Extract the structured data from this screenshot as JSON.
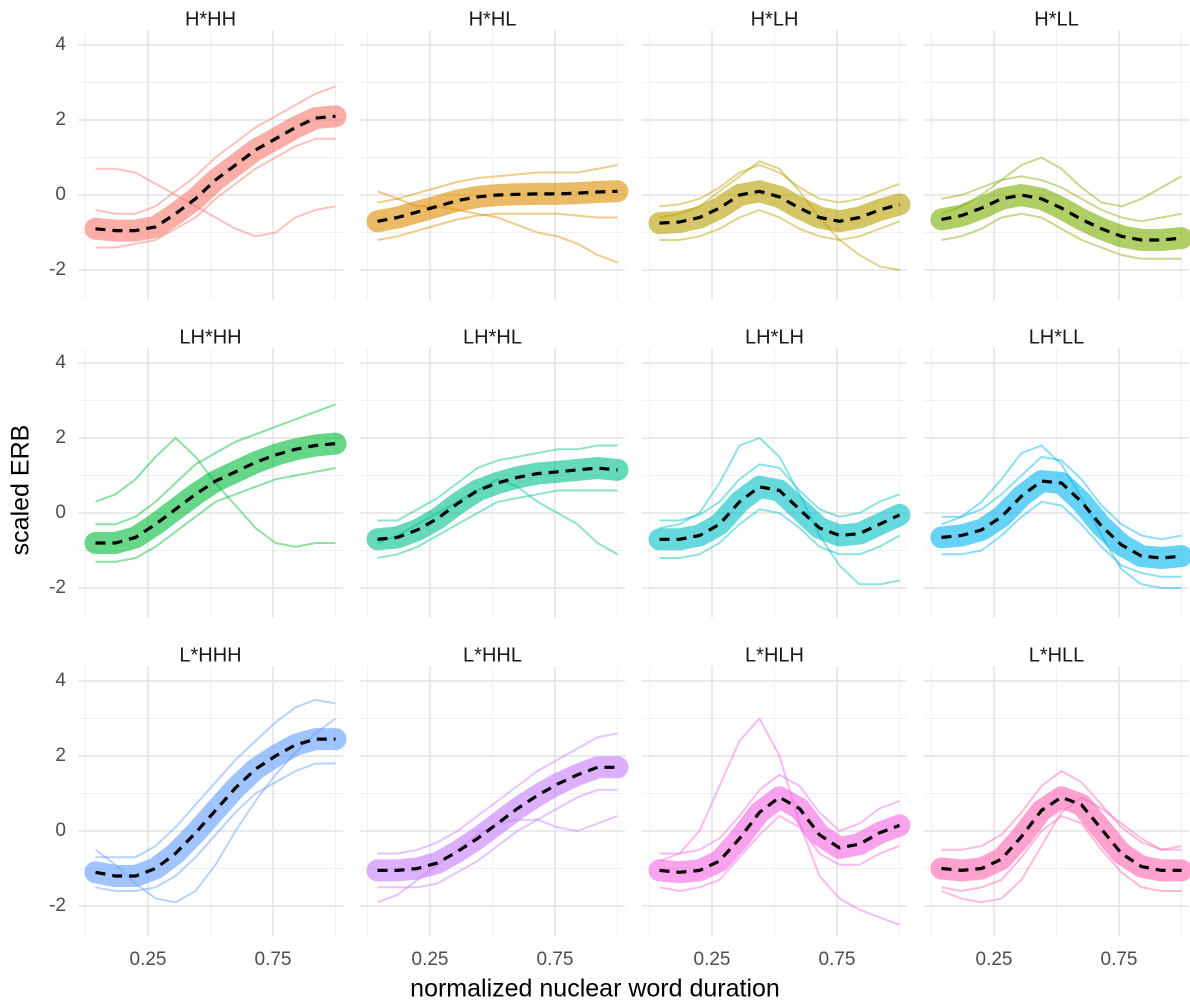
{
  "chart_data": {
    "type": "line",
    "ylabel": "scaled ERB",
    "xlabel": "normalized nuclear word duration",
    "x": [
      0.04,
      0.12,
      0.2,
      0.28,
      0.36,
      0.44,
      0.52,
      0.6,
      0.68,
      0.76,
      0.84,
      0.92,
      1.0
    ],
    "xlim": [
      -0.03,
      1.03
    ],
    "xticks": [
      0.25,
      0.75
    ],
    "x_minor": [
      0,
      0.5,
      1
    ],
    "ylim": [
      -2.8,
      4.4
    ],
    "yticks": [
      -2,
      0,
      2,
      4
    ],
    "y_minor": [
      -1,
      1,
      3
    ],
    "grid": true,
    "mean_color": "#000000",
    "panels": [
      {
        "title": "H*HH",
        "color": "#F8766D",
        "mean": [
          -0.9,
          -0.95,
          -0.95,
          -0.85,
          -0.5,
          -0.1,
          0.4,
          0.8,
          1.2,
          1.5,
          1.8,
          2.05,
          2.1
        ],
        "traces": [
          [
            -0.4,
            -0.5,
            -0.5,
            -0.3,
            0.1,
            0.5,
            1.0,
            1.4,
            1.8,
            2.1,
            2.4,
            2.7,
            2.9
          ],
          [
            -1.4,
            -1.4,
            -1.3,
            -1.2,
            -0.9,
            -0.6,
            -0.1,
            0.3,
            0.7,
            1.0,
            1.3,
            1.5,
            1.5
          ],
          [
            0.7,
            0.7,
            0.6,
            0.3,
            0.0,
            -0.3,
            -0.6,
            -0.9,
            -1.1,
            -1.0,
            -0.6,
            -0.4,
            -0.3
          ]
        ]
      },
      {
        "title": "H*HL",
        "color": "#DE8C00",
        "mean": [
          -0.7,
          -0.6,
          -0.45,
          -0.3,
          -0.15,
          -0.05,
          0,
          0.02,
          0.03,
          0.03,
          0.05,
          0.08,
          0.1
        ],
        "traces": [
          [
            -0.2,
            -0.1,
            0.05,
            0.2,
            0.35,
            0.45,
            0.5,
            0.55,
            0.6,
            0.6,
            0.6,
            0.7,
            0.8
          ],
          [
            -1.2,
            -1.1,
            -0.95,
            -0.8,
            -0.65,
            -0.55,
            -0.5,
            -0.5,
            -0.5,
            -0.5,
            -0.55,
            -0.6,
            -0.6
          ],
          [
            0.1,
            -0.1,
            -0.3,
            -0.3,
            -0.4,
            -0.5,
            -0.6,
            -0.8,
            -1.0,
            -1.1,
            -1.3,
            -1.6,
            -1.8
          ]
        ]
      },
      {
        "title": "H*LH",
        "color": "#B79F00",
        "mean": [
          -0.75,
          -0.72,
          -0.6,
          -0.35,
          0.0,
          0.1,
          -0.05,
          -0.35,
          -0.6,
          -0.7,
          -0.6,
          -0.4,
          -0.25
        ],
        "traces": [
          [
            -0.3,
            -0.25,
            -0.1,
            0.2,
            0.6,
            0.8,
            0.6,
            0.2,
            -0.1,
            -0.2,
            -0.1,
            0.1,
            0.3
          ],
          [
            -1.2,
            -1.2,
            -1.1,
            -0.9,
            -0.6,
            -0.4,
            -0.6,
            -0.9,
            -1.1,
            -1.2,
            -1.1,
            -0.9,
            -0.7
          ],
          [
            -0.6,
            -0.5,
            -0.3,
            0.1,
            0.5,
            0.9,
            0.7,
            0.1,
            -0.6,
            -1.2,
            -1.6,
            -1.9,
            -2.0
          ]
        ]
      },
      {
        "title": "H*LL",
        "color": "#7CAE00",
        "mean": [
          -0.65,
          -0.55,
          -0.35,
          -0.1,
          0,
          -0.1,
          -0.35,
          -0.65,
          -0.9,
          -1.1,
          -1.2,
          -1.2,
          -1.15
        ],
        "traces": [
          [
            -0.1,
            0.0,
            0.2,
            0.4,
            0.5,
            0.4,
            0.2,
            -0.1,
            -0.4,
            -0.6,
            -0.7,
            -0.6,
            -0.5
          ],
          [
            -1.2,
            -1.1,
            -0.9,
            -0.6,
            -0.5,
            -0.6,
            -0.9,
            -1.2,
            -1.4,
            -1.6,
            -1.7,
            -1.7,
            -1.7
          ],
          [
            -0.5,
            -0.3,
            0.0,
            0.4,
            0.8,
            1.0,
            0.7,
            0.2,
            -0.2,
            -0.3,
            -0.1,
            0.2,
            0.5
          ]
        ]
      },
      {
        "title": "LH*HH",
        "color": "#00BA38",
        "mean": [
          -0.8,
          -0.8,
          -0.65,
          -0.3,
          0.1,
          0.5,
          0.85,
          1.1,
          1.35,
          1.55,
          1.7,
          1.8,
          1.85
        ],
        "traces": [
          [
            -0.3,
            -0.3,
            -0.1,
            0.3,
            0.8,
            1.3,
            1.6,
            1.9,
            2.1,
            2.3,
            2.5,
            2.7,
            2.9
          ],
          [
            -1.3,
            -1.3,
            -1.2,
            -0.9,
            -0.5,
            -0.1,
            0.3,
            0.5,
            0.7,
            0.9,
            1.0,
            1.1,
            1.2
          ],
          [
            0.3,
            0.5,
            0.9,
            1.5,
            2.0,
            1.5,
            0.8,
            0.2,
            -0.4,
            -0.8,
            -0.9,
            -0.8,
            -0.8
          ]
        ]
      },
      {
        "title": "LH*HL",
        "color": "#00C08B",
        "mean": [
          -0.7,
          -0.65,
          -0.45,
          -0.15,
          0.25,
          0.6,
          0.8,
          0.95,
          1.05,
          1.1,
          1.15,
          1.2,
          1.15
        ],
        "traces": [
          [
            -0.2,
            -0.2,
            0.1,
            0.4,
            0.8,
            1.2,
            1.4,
            1.5,
            1.6,
            1.7,
            1.7,
            1.8,
            1.8
          ],
          [
            -1.2,
            -1.1,
            -0.9,
            -0.6,
            -0.3,
            0.0,
            0.3,
            0.4,
            0.5,
            0.6,
            0.6,
            0.6,
            0.6
          ],
          [
            -0.8,
            -0.6,
            -0.3,
            0.0,
            0.3,
            0.6,
            0.9,
            0.7,
            0.3,
            0.0,
            -0.3,
            -0.8,
            -1.1
          ]
        ]
      },
      {
        "title": "LH*LH",
        "color": "#00BFC4",
        "mean": [
          -0.7,
          -0.7,
          -0.6,
          -0.3,
          0.3,
          0.7,
          0.6,
          0.1,
          -0.4,
          -0.6,
          -0.55,
          -0.3,
          -0.05
        ],
        "traces": [
          [
            -0.2,
            -0.2,
            -0.05,
            0.3,
            0.9,
            1.3,
            1.2,
            0.6,
            0.1,
            -0.1,
            0.0,
            0.3,
            0.5
          ],
          [
            -1.2,
            -1.2,
            -1.1,
            -0.8,
            -0.3,
            0.1,
            0.0,
            -0.4,
            -0.9,
            -1.1,
            -1.1,
            -0.9,
            -0.6
          ],
          [
            -0.4,
            -0.3,
            0.0,
            0.8,
            1.8,
            2.0,
            1.5,
            0.5,
            -0.6,
            -1.4,
            -1.9,
            -1.9,
            -1.8
          ]
        ]
      },
      {
        "title": "LH*LL",
        "color": "#00B4F0",
        "mean": [
          -0.65,
          -0.6,
          -0.45,
          -0.1,
          0.45,
          0.85,
          0.8,
          0.3,
          -0.35,
          -0.85,
          -1.15,
          -1.2,
          -1.15
        ],
        "traces": [
          [
            -0.1,
            -0.1,
            0.1,
            0.5,
            1.0,
            1.5,
            1.4,
            0.9,
            0.2,
            -0.3,
            -0.6,
            -0.7,
            -0.6
          ],
          [
            -1.1,
            -1.1,
            -1.0,
            -0.6,
            -0.1,
            0.3,
            0.2,
            -0.3,
            -0.9,
            -1.4,
            -1.6,
            -1.7,
            -1.7
          ],
          [
            -0.3,
            -0.1,
            0.3,
            0.9,
            1.6,
            1.8,
            1.3,
            0.4,
            -0.6,
            -1.5,
            -1.9,
            -2.0,
            -2.0
          ]
        ]
      },
      {
        "title": "L*HHH",
        "color": "#619CFF",
        "mean": [
          -1.1,
          -1.2,
          -1.2,
          -1.0,
          -0.6,
          -0.05,
          0.55,
          1.15,
          1.65,
          2.0,
          2.3,
          2.45,
          2.45
        ],
        "traces": [
          [
            -0.7,
            -0.7,
            -0.7,
            -0.4,
            0.1,
            0.7,
            1.3,
            1.9,
            2.4,
            2.9,
            3.3,
            3.5,
            3.4
          ],
          [
            -1.5,
            -1.6,
            -1.6,
            -1.5,
            -1.2,
            -0.7,
            -0.1,
            0.5,
            1.0,
            1.3,
            1.6,
            1.8,
            1.8
          ],
          [
            -0.5,
            -0.9,
            -1.4,
            -1.8,
            -1.9,
            -1.6,
            -0.9,
            0.0,
            0.8,
            1.5,
            2.1,
            2.6,
            3.0
          ]
        ]
      },
      {
        "title": "L*HHL",
        "color": "#C77CFF",
        "mean": [
          -1.05,
          -1.05,
          -1.0,
          -0.85,
          -0.55,
          -0.2,
          0.2,
          0.6,
          0.95,
          1.25,
          1.5,
          1.7,
          1.7
        ],
        "traces": [
          [
            -0.6,
            -0.6,
            -0.5,
            -0.3,
            0.0,
            0.4,
            0.8,
            1.2,
            1.6,
            1.9,
            2.2,
            2.5,
            2.6
          ],
          [
            -1.5,
            -1.5,
            -1.5,
            -1.4,
            -1.1,
            -0.8,
            -0.4,
            0.0,
            0.3,
            0.6,
            0.9,
            1.1,
            1.1
          ],
          [
            -1.9,
            -1.7,
            -1.3,
            -0.9,
            -0.5,
            -0.1,
            0.2,
            0.3,
            0.3,
            0.1,
            0.0,
            0.2,
            0.4
          ]
        ]
      },
      {
        "title": "L*HLH",
        "color": "#F564E3",
        "mean": [
          -1.05,
          -1.1,
          -1.05,
          -0.8,
          -0.2,
          0.5,
          0.9,
          0.6,
          -0.1,
          -0.45,
          -0.35,
          -0.05,
          0.15
        ],
        "traces": [
          [
            -0.6,
            -0.6,
            -0.5,
            -0.2,
            0.4,
            1.1,
            1.5,
            1.2,
            0.5,
            0.0,
            0.2,
            0.6,
            0.8
          ],
          [
            -1.5,
            -1.6,
            -1.5,
            -1.3,
            -0.7,
            -0.1,
            0.4,
            0.1,
            -0.6,
            -0.9,
            -0.9,
            -0.6,
            -0.4
          ],
          [
            -0.8,
            -0.6,
            0.0,
            1.2,
            2.4,
            3.0,
            2.0,
            0.2,
            -1.2,
            -1.8,
            -2.1,
            -2.3,
            -2.5
          ]
        ]
      },
      {
        "title": "L*HLL",
        "color": "#FF64B0",
        "mean": [
          -1.0,
          -1.05,
          -1.0,
          -0.75,
          -0.15,
          0.55,
          0.9,
          0.7,
          0.05,
          -0.6,
          -0.95,
          -1.05,
          -1.05
        ],
        "traces": [
          [
            -0.5,
            -0.5,
            -0.4,
            -0.1,
            0.5,
            1.2,
            1.6,
            1.3,
            0.7,
            0.1,
            -0.3,
            -0.5,
            -0.5
          ],
          [
            -1.5,
            -1.6,
            -1.5,
            -1.3,
            -0.7,
            0.0,
            0.4,
            0.2,
            -0.5,
            -1.1,
            -1.5,
            -1.6,
            -1.6
          ],
          [
            -1.6,
            -1.8,
            -1.9,
            -1.8,
            -1.3,
            -0.4,
            0.5,
            0.9,
            0.6,
            0.2,
            -0.2,
            -0.5,
            -0.4
          ]
        ]
      }
    ]
  }
}
